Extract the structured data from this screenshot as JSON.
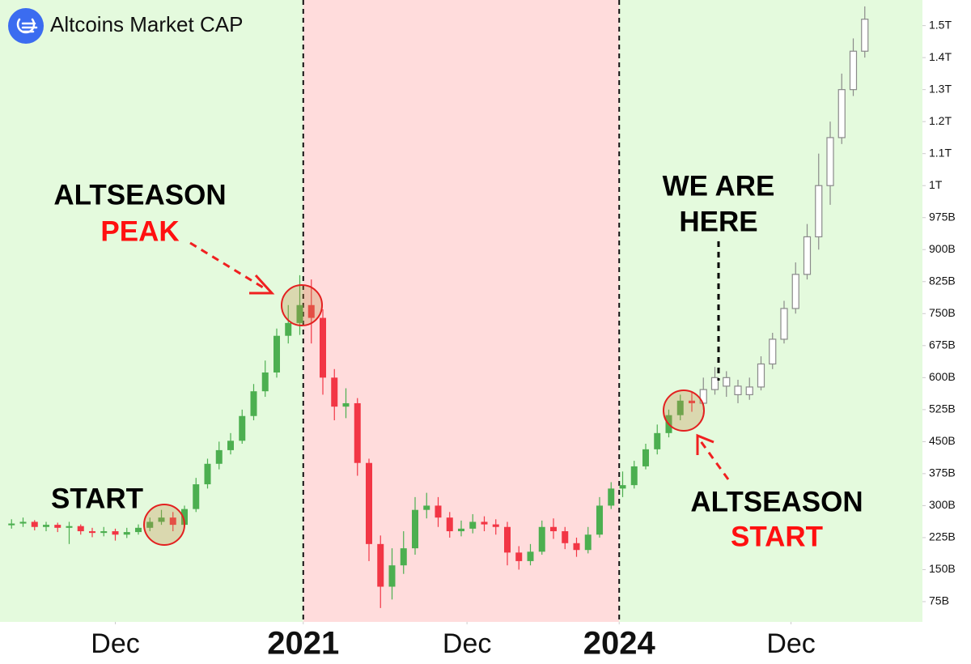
{
  "chart_data": {
    "type": "candlestick",
    "title": "Altcoins Market CAP",
    "xlim": [
      0,
      80
    ],
    "ylim": [
      27.5,
      1580
    ],
    "xticks": [
      {
        "value": 10,
        "label": "Dec",
        "bold": false
      },
      {
        "value": 26.3,
        "label": "2021",
        "bold": true
      },
      {
        "value": 40.5,
        "label": "Dec",
        "bold": false
      },
      {
        "value": 53.7,
        "label": "2024",
        "bold": true
      },
      {
        "value": 68.6,
        "label": "Dec",
        "bold": false
      }
    ],
    "yticks": [
      {
        "value": 75,
        "label": "75B"
      },
      {
        "value": 150,
        "label": "150B"
      },
      {
        "value": 225,
        "label": "225B"
      },
      {
        "value": 300,
        "label": "300B"
      },
      {
        "value": 375,
        "label": "375B"
      },
      {
        "value": 450,
        "label": "450B"
      },
      {
        "value": 525,
        "label": "525B"
      },
      {
        "value": 600,
        "label": "600B"
      },
      {
        "value": 675,
        "label": "675B"
      },
      {
        "value": 750,
        "label": "750B"
      },
      {
        "value": 825,
        "label": "825B"
      },
      {
        "value": 900,
        "label": "900B"
      },
      {
        "value": 975,
        "label": "975B"
      },
      {
        "value": 1000,
        "label": "1T"
      },
      {
        "value": 1100,
        "label": "1.1T"
      },
      {
        "value": 1200,
        "label": "1.2T"
      },
      {
        "value": 1300,
        "label": "1.3T"
      },
      {
        "value": 1400,
        "label": "1.4T"
      },
      {
        "value": 1500,
        "label": "1.5T"
      }
    ],
    "regions": [
      {
        "from": 0,
        "to": 26.3,
        "color": "#e4fadd"
      },
      {
        "from": 26.3,
        "to": 53.7,
        "color": "#ffdcdc"
      },
      {
        "from": 53.7,
        "to": 80,
        "color": "#e4fadd"
      }
    ],
    "candles": [
      {
        "hollow": false,
        "up_color": "#4caf50",
        "down_color": "#f23645",
        "x": [
          1,
          2,
          3,
          4,
          5,
          6,
          7,
          8,
          9,
          10,
          11,
          12,
          13,
          14,
          15,
          16,
          17,
          18,
          19,
          20,
          21,
          22,
          23,
          24,
          25,
          26,
          27,
          28,
          29,
          30,
          31,
          32,
          33,
          34,
          35,
          36,
          37,
          38,
          39,
          40,
          41,
          42,
          43,
          44,
          45,
          46,
          47,
          48,
          49,
          50,
          51,
          52,
          53,
          54,
          55,
          56,
          57,
          58,
          59,
          60
        ],
        "open": [
          254,
          258,
          262,
          250,
          255,
          248,
          252,
          240,
          236,
          240,
          232,
          238,
          248,
          262,
          272,
          255,
          292,
          350,
          398,
          430,
          452,
          510,
          568,
          612,
          698,
          728,
          770,
          740,
          600,
          532,
          540,
          400,
          210,
          110,
          160,
          200,
          290,
          300,
          272,
          240,
          246,
          262,
          256,
          250,
          190,
          170,
          192,
          250,
          240,
          212,
          196,
          232,
          300,
          340,
          348,
          392,
          432,
          470,
          512,
          546
        ],
        "high": [
          268,
          272,
          266,
          262,
          260,
          262,
          256,
          248,
          250,
          246,
          248,
          256,
          272,
          290,
          285,
          300,
          365,
          410,
          450,
          470,
          525,
          585,
          640,
          715,
          770,
          840,
          830,
          760,
          620,
          575,
          552,
          410,
          230,
          200,
          240,
          320,
          330,
          320,
          285,
          265,
          280,
          275,
          268,
          262,
          205,
          210,
          265,
          270,
          250,
          225,
          250,
          320,
          355,
          380,
          405,
          445,
          490,
          525,
          560,
          565
        ],
        "low": [
          246,
          250,
          242,
          240,
          238,
          210,
          232,
          226,
          228,
          218,
          224,
          232,
          240,
          255,
          240,
          248,
          285,
          340,
          385,
          420,
          445,
          500,
          555,
          600,
          680,
          700,
          680,
          560,
          500,
          505,
          370,
          170,
          60,
          80,
          140,
          185,
          270,
          250,
          225,
          228,
          235,
          240,
          232,
          160,
          150,
          160,
          185,
          222,
          198,
          180,
          188,
          225,
          292,
          320,
          340,
          385,
          420,
          460,
          500,
          520
        ],
        "close": [
          258,
          262,
          250,
          255,
          248,
          252,
          240,
          236,
          240,
          232,
          238,
          248,
          262,
          272,
          255,
          292,
          350,
          398,
          430,
          452,
          510,
          568,
          612,
          698,
          728,
          770,
          740,
          600,
          532,
          540,
          400,
          210,
          110,
          160,
          200,
          290,
          300,
          272,
          240,
          246,
          262,
          256,
          250,
          190,
          170,
          192,
          250,
          240,
          212,
          196,
          232,
          300,
          340,
          348,
          392,
          432,
          470,
          512,
          546,
          540
        ]
      },
      {
        "hollow": true,
        "up_color": "#8a8a8a",
        "down_color": "#8a8a8a",
        "x": [
          61,
          62,
          63,
          64,
          65,
          66,
          67,
          68,
          69,
          70,
          71,
          72,
          73,
          74,
          75
        ],
        "open": [
          540,
          572,
          600,
          580,
          560,
          578,
          632,
          690,
          762,
          842,
          930,
          1000,
          1150,
          1300,
          1420
        ],
        "high": [
          600,
          625,
          615,
          595,
          600,
          650,
          705,
          780,
          870,
          960,
          1100,
          1200,
          1350,
          1460,
          1560
        ],
        "low": [
          525,
          560,
          555,
          540,
          548,
          570,
          620,
          680,
          750,
          830,
          900,
          985,
          1130,
          1280,
          1400
        ],
        "close": [
          572,
          600,
          580,
          560,
          578,
          632,
          690,
          762,
          842,
          930,
          1000,
          1150,
          1300,
          1420,
          1520
        ]
      }
    ],
    "annotations": [
      {
        "lines": [
          "ALTSEASON",
          "PEAK"
        ]
      },
      {
        "lines": [
          "START"
        ]
      },
      {
        "lines": [
          "WE ARE",
          "HERE"
        ]
      },
      {
        "lines": [
          "ALTSEASON",
          "START"
        ]
      }
    ]
  }
}
